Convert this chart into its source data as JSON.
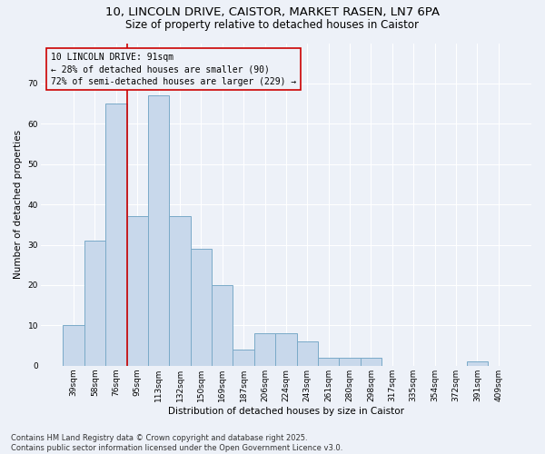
{
  "title_line1": "10, LINCOLN DRIVE, CAISTOR, MARKET RASEN, LN7 6PA",
  "title_line2": "Size of property relative to detached houses in Caistor",
  "xlabel": "Distribution of detached houses by size in Caistor",
  "ylabel": "Number of detached properties",
  "bar_labels": [
    "39sqm",
    "58sqm",
    "76sqm",
    "95sqm",
    "113sqm",
    "132sqm",
    "150sqm",
    "169sqm",
    "187sqm",
    "206sqm",
    "224sqm",
    "243sqm",
    "261sqm",
    "280sqm",
    "298sqm",
    "317sqm",
    "335sqm",
    "354sqm",
    "372sqm",
    "391sqm",
    "409sqm"
  ],
  "bar_values": [
    10,
    31,
    65,
    37,
    67,
    37,
    29,
    20,
    4,
    8,
    8,
    6,
    2,
    2,
    2,
    0,
    0,
    0,
    0,
    1,
    0
  ],
  "bar_color": "#c8d8eb",
  "bar_edge_color": "#7aaac8",
  "background_color": "#edf1f8",
  "grid_color": "#ffffff",
  "property_line_color": "#cc0000",
  "annotation_text": "10 LINCOLN DRIVE: 91sqm\n← 28% of detached houses are smaller (90)\n72% of semi-detached houses are larger (229) →",
  "annotation_box_color": "#cc0000",
  "annotation_bg_color": "#edf1f8",
  "ylim": [
    0,
    80
  ],
  "yticks": [
    0,
    10,
    20,
    30,
    40,
    50,
    60,
    70
  ],
  "footer_text": "Contains HM Land Registry data © Crown copyright and database right 2025.\nContains public sector information licensed under the Open Government Licence v3.0.",
  "title_fontsize": 9.5,
  "subtitle_fontsize": 8.5,
  "axis_label_fontsize": 7.5,
  "tick_fontsize": 6.5,
  "annotation_fontsize": 7,
  "footer_fontsize": 6
}
